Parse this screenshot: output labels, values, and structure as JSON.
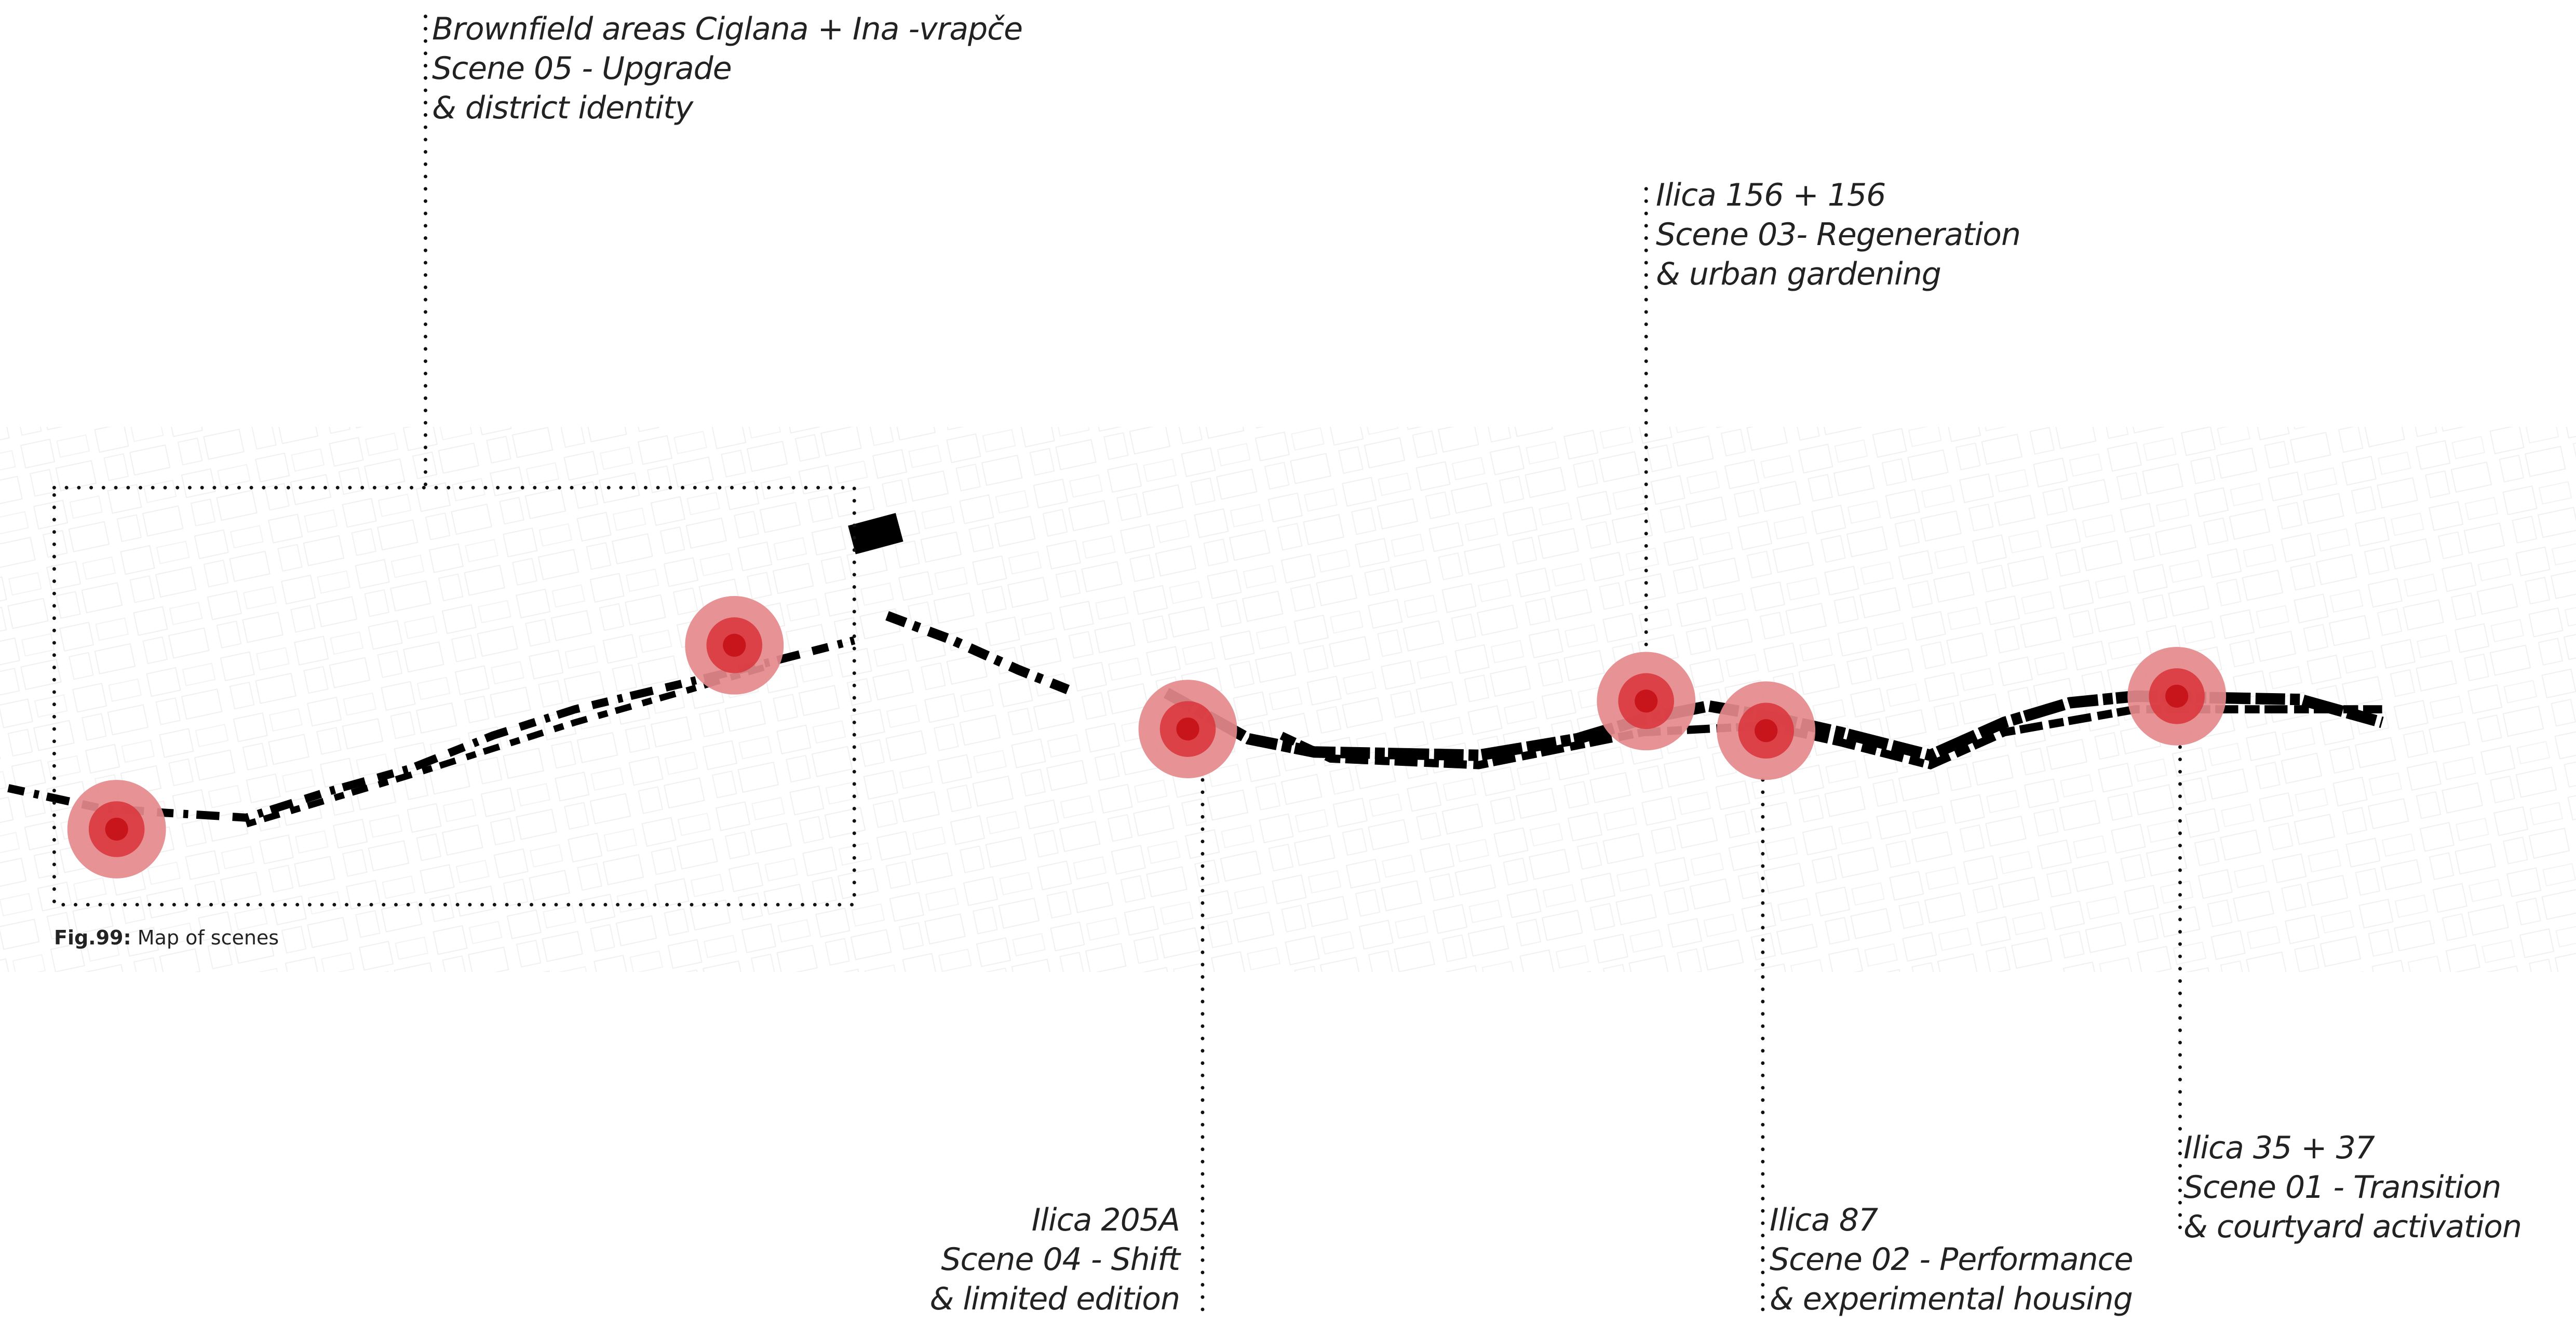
{
  "figure": {
    "caption_label": "Fig.99:",
    "caption_text": "Map of scenes"
  },
  "scenes": [
    {
      "location": "Brownfield areas Ciglana + Ina -vrapče",
      "scene": "Scene 05 - Upgrade",
      "theme": "& district identity"
    },
    {
      "location": "Ilica 156 + 156",
      "scene": "Scene 03- Regeneration",
      "theme": "& urban gardening"
    },
    {
      "location": "Ilica 205A",
      "scene": "Scene 04 - Shift",
      "theme": "& limited edition"
    },
    {
      "location": "Ilica 87",
      "scene": "Scene 02 - Performance",
      "theme": "& experimental housing"
    },
    {
      "location": "Ilica 35 + 37",
      "scene": "Scene 01 - Transition",
      "theme": "& courtyard activation"
    }
  ],
  "colors": {
    "marker_outer": "#e58a8c",
    "marker_mid": "#d9393d",
    "marker_inner": "#c8151b",
    "street": "#000000",
    "background_map": "#e4e4e4"
  }
}
